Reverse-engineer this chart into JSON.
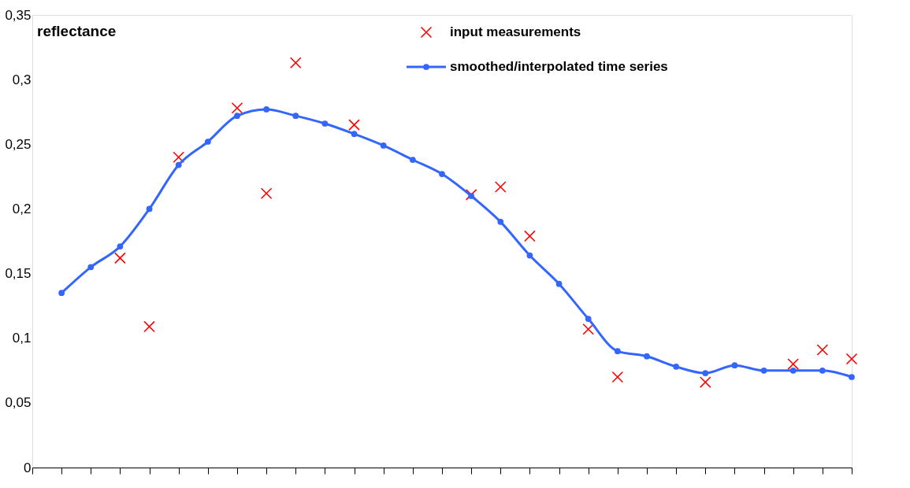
{
  "chart_data": {
    "type": "line",
    "ylabel": "reflectance",
    "categories": [
      null,
      null,
      null,
      null,
      null,
      null,
      null,
      null,
      null,
      null,
      null,
      null,
      null,
      null,
      null,
      null,
      null,
      null,
      null,
      null,
      null,
      null,
      null,
      null,
      null,
      null,
      null,
      null
    ],
    "ylim": [
      0,
      0.35
    ],
    "yticks": [
      0,
      {
        "value": 0.05,
        "label": "0,05"
      },
      {
        "value": 0.1,
        "label": "0,1"
      },
      {
        "value": 0.15,
        "label": "0,15"
      },
      {
        "value": 0.2,
        "label": "0,2"
      },
      {
        "value": 0.25,
        "label": "0,25"
      },
      {
        "value": 0.3,
        "label": "0,3"
      },
      {
        "value": 0.35,
        "label": "0,35"
      }
    ],
    "grid": false,
    "legend": "top right",
    "series": [
      {
        "name": "input measurements",
        "type": "scatter",
        "marker": "cross",
        "color": "#ff0000",
        "values": [
          null,
          null,
          0.162,
          0.109,
          0.24,
          null,
          0.278,
          0.212,
          0.313,
          null,
          0.265,
          null,
          null,
          null,
          0.211,
          0.217,
          0.179,
          null,
          0.107,
          0.07,
          null,
          null,
          0.066,
          null,
          null,
          0.08,
          0.091,
          0.084
        ]
      },
      {
        "name": "smoothed/interpolated time series",
        "type": "line",
        "marker": "circle",
        "line_style": "solid",
        "color": "#3366ff",
        "values": [
          0.135,
          0.155,
          0.171,
          0.2,
          0.234,
          0.252,
          0.272,
          0.277,
          0.272,
          0.266,
          0.258,
          0.249,
          0.238,
          0.227,
          0.21,
          0.19,
          0.164,
          0.142,
          0.115,
          0.09,
          0.086,
          0.078,
          0.073,
          0.079,
          0.075,
          0.075,
          0.075,
          0.07
        ]
      }
    ]
  }
}
